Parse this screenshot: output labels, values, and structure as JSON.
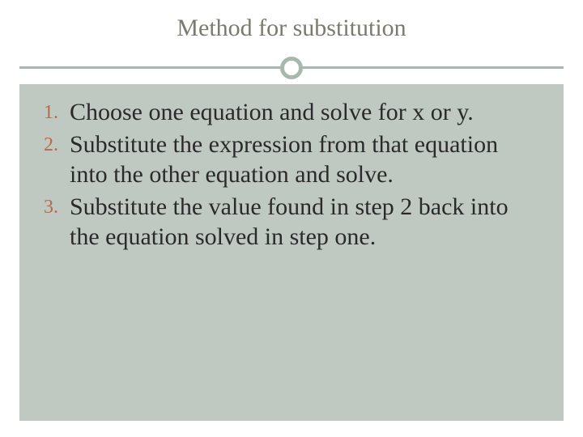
{
  "slide": {
    "title": "Method for substitution",
    "title_color": "#7a7a6e",
    "title_fontsize": 30,
    "divider_color": "#a9b8ac",
    "content_bg": "#bfc9c2",
    "number_color": "#b66b4a",
    "body_fontsize": 30,
    "body_color": "#2a2a2a",
    "items": [
      {
        "num": "1.",
        "text": "Choose one equation and solve for x or y."
      },
      {
        "num": "2.",
        "text": "Substitute the expression from that equation into the other equation and solve."
      },
      {
        "num": "3.",
        "text": "Substitute the value found in step 2 back into the equation solved in step one."
      }
    ]
  }
}
